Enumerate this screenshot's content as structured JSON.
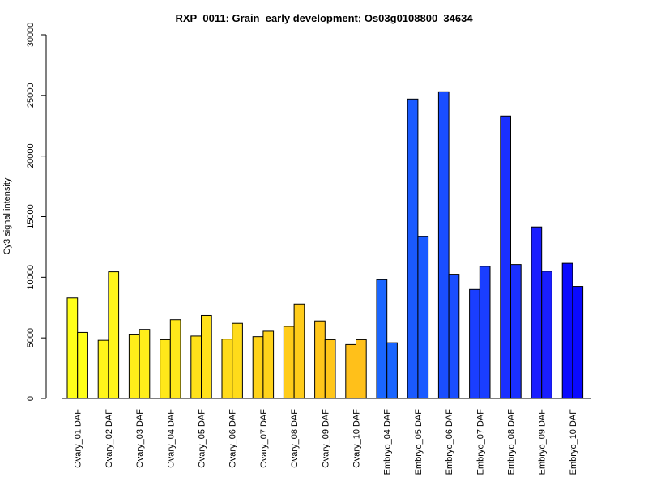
{
  "chart_data": {
    "type": "bar",
    "title": "RXP_0011: Grain_early development; Os03g0108800_34634",
    "xlabel": "",
    "ylabel": "Cy3 signal intensity",
    "ylim": [
      0,
      30000
    ],
    "yticks": [
      0,
      5000,
      10000,
      15000,
      20000,
      25000,
      30000
    ],
    "categories": [
      "Ovary_01 DAF",
      "Ovary_02 DAF",
      "Ovary_03 DAF",
      "Ovary_04 DAF",
      "Ovary_05 DAF",
      "Ovary_06 DAF",
      "Ovary_07 DAF",
      "Ovary_08 DAF",
      "Ovary_09 DAF",
      "Ovary_10 DAF",
      "Embryo_04 DAF",
      "Embryo_05 DAF",
      "Embryo_06 DAF",
      "Embryo_07 DAF",
      "Embryo_08 DAF",
      "Embryo_09 DAF",
      "Embryo_10 DAF"
    ],
    "series": [
      {
        "values": [
          8300,
          4800,
          5250,
          4850,
          5150,
          4900,
          5100,
          5950,
          6400,
          4450,
          9800,
          24700,
          25300,
          9000,
          23300,
          14150,
          11150
        ]
      },
      {
        "values": [
          5450,
          10450,
          5700,
          6500,
          6850,
          6200,
          5550,
          7800,
          4850,
          4850,
          4600,
          13350,
          10250,
          10900,
          11050,
          10500,
          9250
        ]
      }
    ],
    "colors": [
      "#ffff1a",
      "#fff51a",
      "#ffee1a",
      "#ffe81a",
      "#ffe11a",
      "#ffdb1a",
      "#ffd31a",
      "#ffcc1a",
      "#ffc61a",
      "#ffc01a",
      "#1a66ff",
      "#1a5aff",
      "#1a4eff",
      "#1a3eff",
      "#1a30ff",
      "#1a1eff",
      "#0a0aff"
    ],
    "grid": false,
    "legend": "none"
  }
}
